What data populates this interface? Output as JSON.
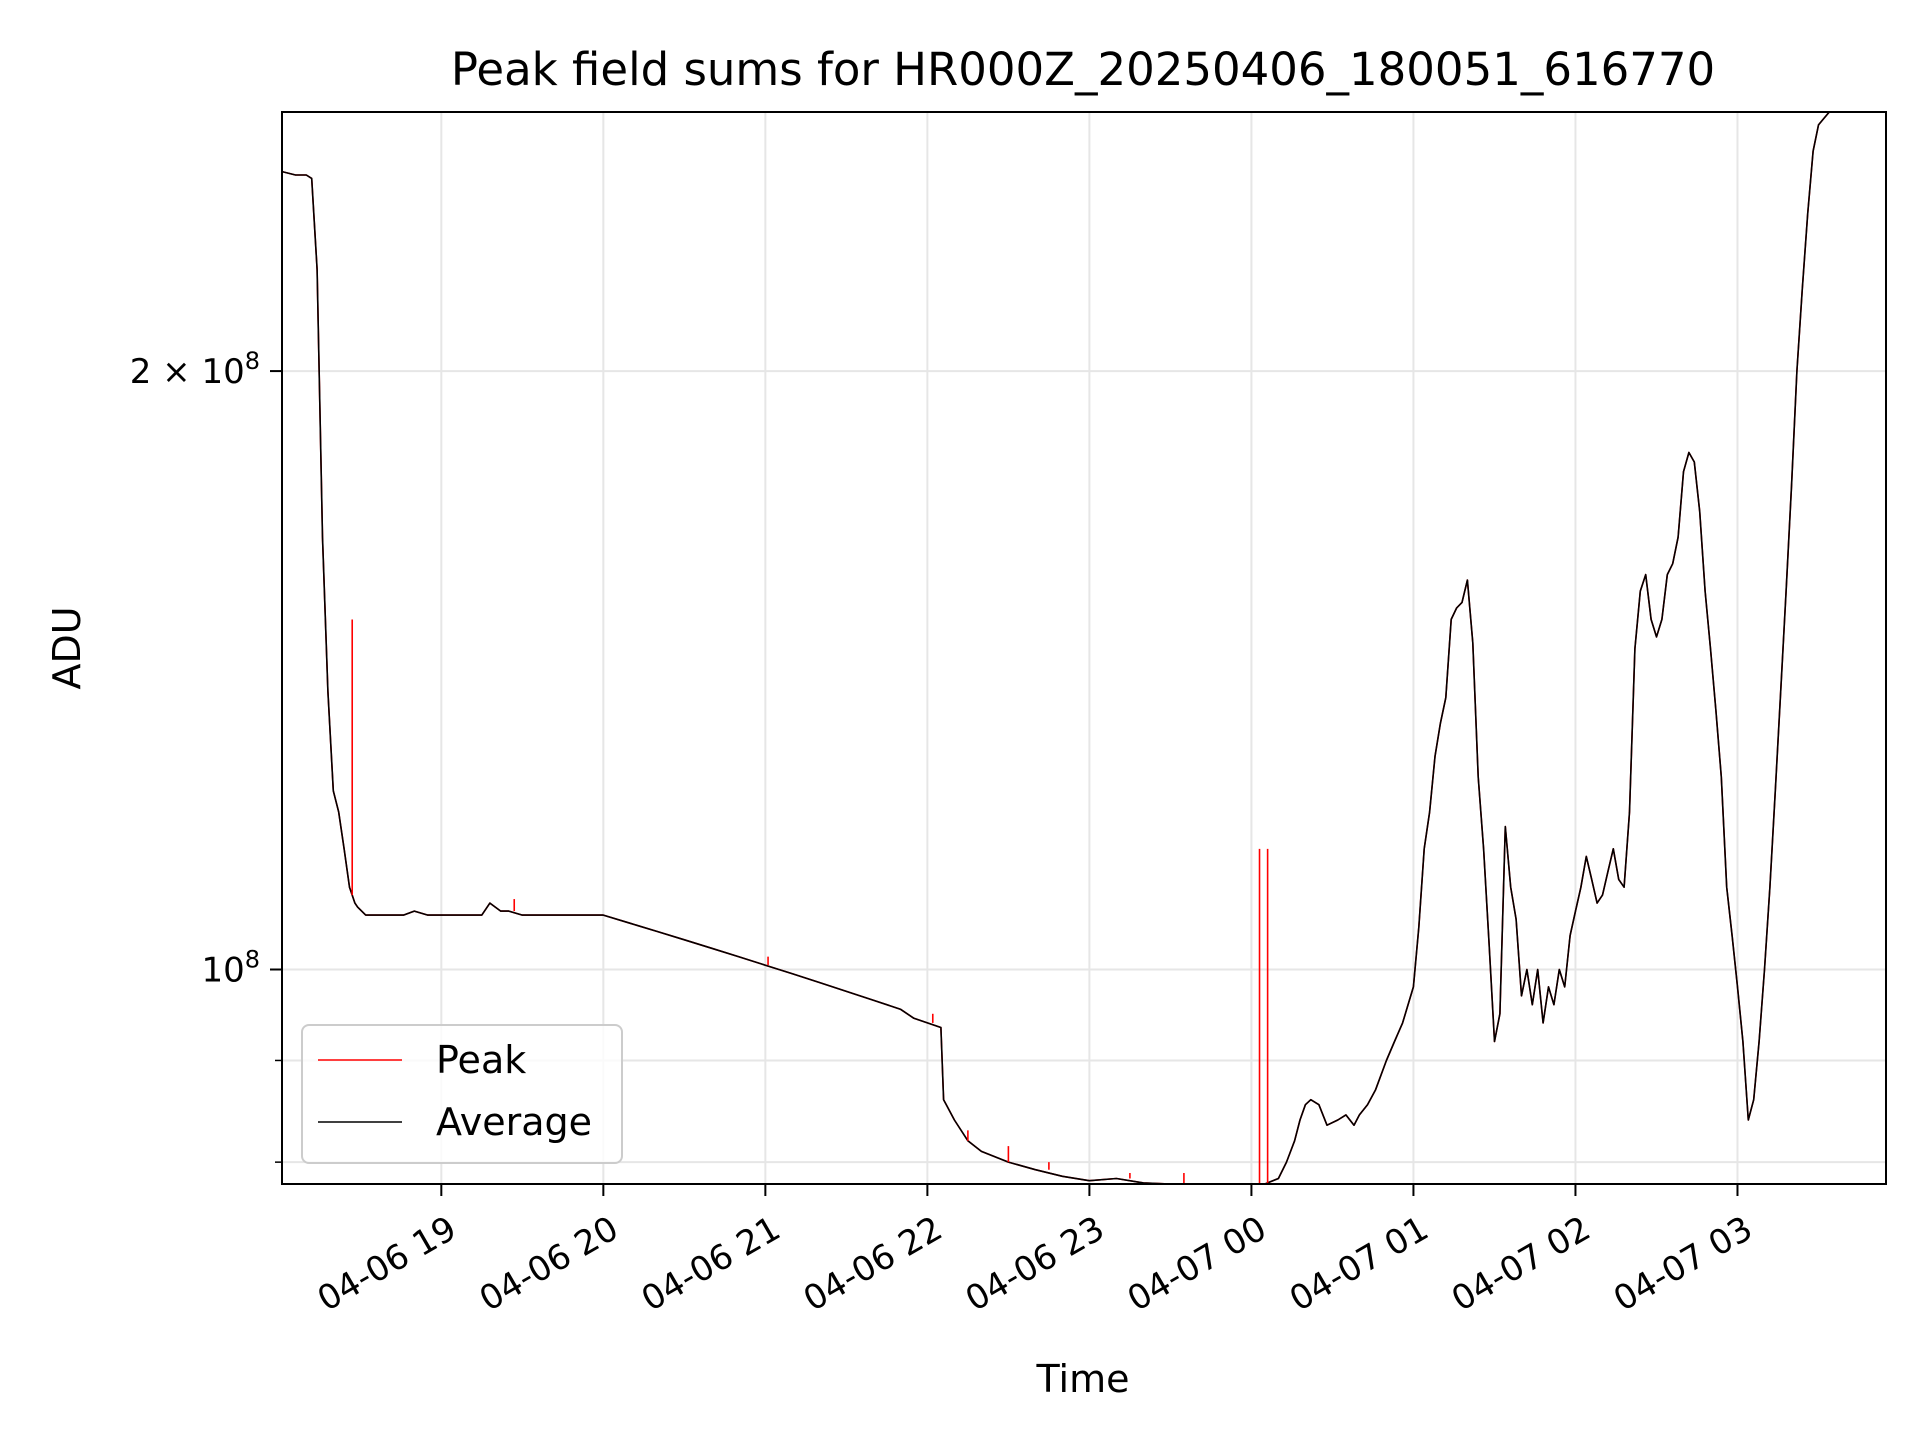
{
  "chart_data": {
    "type": "line",
    "title": "Peak field sums for HR000Z_20250406_180051_616770",
    "xlabel": "Time",
    "ylabel": "ADU",
    "yscale": "log",
    "ylim": [
      78000000,
      270000000
    ],
    "xlim": [
      "2025-04-06 18:01",
      "2025-04-07 03:55"
    ],
    "x_ticks": [
      {
        "value": "2025-04-06 19:00",
        "label": "04-06 19"
      },
      {
        "value": "2025-04-06 20:00",
        "label": "04-06 20"
      },
      {
        "value": "2025-04-06 21:00",
        "label": "04-06 21"
      },
      {
        "value": "2025-04-06 22:00",
        "label": "04-06 22"
      },
      {
        "value": "2025-04-06 23:00",
        "label": "04-06 23"
      },
      {
        "value": "2025-04-07 00:00",
        "label": "04-07 00"
      },
      {
        "value": "2025-04-07 01:00",
        "label": "04-07 01"
      },
      {
        "value": "2025-04-07 02:00",
        "label": "04-07 02"
      },
      {
        "value": "2025-04-07 03:00",
        "label": "04-07 03"
      }
    ],
    "y_ticks": [
      {
        "value": 100000000,
        "base": "10",
        "exp": "8",
        "coef": ""
      },
      {
        "value": 200000000,
        "base": "10",
        "exp": "8",
        "coef": "2 × "
      }
    ],
    "y_minor_ticks": [
      80000000,
      90000000
    ],
    "grid": true,
    "legend": {
      "placement": "lower-left"
    },
    "series": [
      {
        "name": "Average",
        "color": "#000000",
        "x": [
          "2025-04-06 18:01",
          "2025-04-06 18:06",
          "2025-04-06 18:10",
          "2025-04-06 18:12",
          "2025-04-06 18:14",
          "2025-04-06 18:16",
          "2025-04-06 18:18",
          "2025-04-06 18:20",
          "2025-04-06 18:22",
          "2025-04-06 18:24",
          "2025-04-06 18:26",
          "2025-04-06 18:27",
          "2025-04-06 18:28",
          "2025-04-06 18:29",
          "2025-04-06 18:32",
          "2025-04-06 18:35",
          "2025-04-06 18:38",
          "2025-04-06 18:42",
          "2025-04-06 18:46",
          "2025-04-06 18:50",
          "2025-04-06 18:55",
          "2025-04-06 19:00",
          "2025-04-06 19:05",
          "2025-04-06 19:10",
          "2025-04-06 19:15",
          "2025-04-06 19:18",
          "2025-04-06 19:20",
          "2025-04-06 19:22",
          "2025-04-06 19:25",
          "2025-04-06 19:30",
          "2025-04-06 19:40",
          "2025-04-06 19:50",
          "2025-04-06 20:00",
          "2025-04-06 20:10",
          "2025-04-06 20:20",
          "2025-04-06 20:30",
          "2025-04-06 20:40",
          "2025-04-06 20:50",
          "2025-04-06 21:00",
          "2025-04-06 21:10",
          "2025-04-06 21:20",
          "2025-04-06 21:30",
          "2025-04-06 21:40",
          "2025-04-06 21:50",
          "2025-04-06 21:55",
          "2025-04-06 22:00",
          "2025-04-06 22:05",
          "2025-04-06 22:06",
          "2025-04-06 22:07",
          "2025-04-06 22:10",
          "2025-04-06 22:15",
          "2025-04-06 22:20",
          "2025-04-06 22:30",
          "2025-04-06 22:40",
          "2025-04-06 22:50",
          "2025-04-06 23:00",
          "2025-04-06 23:10",
          "2025-04-06 23:20",
          "2025-04-06 23:30",
          "2025-04-06 23:40",
          "2025-04-06 23:50",
          "2025-04-07 00:00",
          "2025-04-07 00:05",
          "2025-04-07 00:10",
          "2025-04-07 00:13",
          "2025-04-07 00:16",
          "2025-04-07 00:18",
          "2025-04-07 00:20",
          "2025-04-07 00:22",
          "2025-04-07 00:25",
          "2025-04-07 00:28",
          "2025-04-07 00:32",
          "2025-04-07 00:35",
          "2025-04-07 00:38",
          "2025-04-07 00:40",
          "2025-04-07 00:43",
          "2025-04-07 00:46",
          "2025-04-07 00:50",
          "2025-04-07 00:53",
          "2025-04-07 00:56",
          "2025-04-07 01:00",
          "2025-04-07 01:02",
          "2025-04-07 01:04",
          "2025-04-07 01:06",
          "2025-04-07 01:08",
          "2025-04-07 01:10",
          "2025-04-07 01:12",
          "2025-04-07 01:14",
          "2025-04-07 01:16",
          "2025-04-07 01:18",
          "2025-04-07 01:20",
          "2025-04-07 01:22",
          "2025-04-07 01:24",
          "2025-04-07 01:26",
          "2025-04-07 01:28",
          "2025-04-07 01:30",
          "2025-04-07 01:32",
          "2025-04-07 01:34",
          "2025-04-07 01:36",
          "2025-04-07 01:38",
          "2025-04-07 01:40",
          "2025-04-07 01:42",
          "2025-04-07 01:44",
          "2025-04-07 01:46",
          "2025-04-07 01:48",
          "2025-04-07 01:50",
          "2025-04-07 01:52",
          "2025-04-07 01:54",
          "2025-04-07 01:56",
          "2025-04-07 01:58",
          "2025-04-07 02:00",
          "2025-04-07 02:02",
          "2025-04-07 02:04",
          "2025-04-07 02:06",
          "2025-04-07 02:08",
          "2025-04-07 02:10",
          "2025-04-07 02:12",
          "2025-04-07 02:14",
          "2025-04-07 02:16",
          "2025-04-07 02:18",
          "2025-04-07 02:20",
          "2025-04-07 02:22",
          "2025-04-07 02:24",
          "2025-04-07 02:26",
          "2025-04-07 02:28",
          "2025-04-07 02:30",
          "2025-04-07 02:32",
          "2025-04-07 02:34",
          "2025-04-07 02:36",
          "2025-04-07 02:38",
          "2025-04-07 02:40",
          "2025-04-07 02:42",
          "2025-04-07 02:44",
          "2025-04-07 02:46",
          "2025-04-07 02:48",
          "2025-04-07 02:50",
          "2025-04-07 02:52",
          "2025-04-07 02:54",
          "2025-04-07 02:56",
          "2025-04-07 02:58",
          "2025-04-07 03:00",
          "2025-04-07 03:02",
          "2025-04-07 03:04",
          "2025-04-07 03:06",
          "2025-04-07 03:08",
          "2025-04-07 03:10",
          "2025-04-07 03:12",
          "2025-04-07 03:14",
          "2025-04-07 03:16",
          "2025-04-07 03:18",
          "2025-04-07 03:20",
          "2025-04-07 03:22",
          "2025-04-07 03:24",
          "2025-04-07 03:26",
          "2025-04-07 03:28",
          "2025-04-07 03:30",
          "2025-04-07 03:32",
          "2025-04-07 03:34",
          "2025-04-07 03:36",
          "2025-04-07 03:38",
          "2025-04-07 03:40",
          "2025-04-07 03:42",
          "2025-04-07 03:44",
          "2025-04-07 03:46",
          "2025-04-07 03:48",
          "2025-04-07 03:50",
          "2025-04-07 03:52",
          "2025-04-07 03:55"
        ],
        "y": [
          252000000,
          251000000,
          251000000,
          250000000,
          225000000,
          165000000,
          138000000,
          123000000,
          120000000,
          115000000,
          110000000,
          109000000,
          108000000,
          107500000,
          106500000,
          106500000,
          106500000,
          106500000,
          106500000,
          107000000,
          106500000,
          106500000,
          106500000,
          106500000,
          106500000,
          108000000,
          107500000,
          107000000,
          107000000,
          106500000,
          106500000,
          106500000,
          106500000,
          105500000,
          104500000,
          103500000,
          102500000,
          101500000,
          100500000,
          99500000,
          98500000,
          97500000,
          96500000,
          95500000,
          94500000,
          94000000,
          93500000,
          86000000,
          85500000,
          84000000,
          82000000,
          81000000,
          80000000,
          79300000,
          78700000,
          78300000,
          78500000,
          78100000,
          78000000,
          77800000,
          77900000,
          77500000,
          78000000,
          78500000,
          80000000,
          82000000,
          84000000,
          85500000,
          86000000,
          85500000,
          83500000,
          84000000,
          84500000,
          83500000,
          84500000,
          85500000,
          87000000,
          90000000,
          92000000,
          94000000,
          98000000,
          105000000,
          115000000,
          120000000,
          128000000,
          133000000,
          137000000,
          150000000,
          152000000,
          153000000,
          157000000,
          146000000,
          125000000,
          115000000,
          103000000,
          92000000,
          95000000,
          118000000,
          110000000,
          106000000,
          97000000,
          100000000,
          96000000,
          100000000,
          94000000,
          98000000,
          96000000,
          100000000,
          98000000,
          104000000,
          107000000,
          110000000,
          114000000,
          111000000,
          108000000,
          109000000,
          112000000,
          115000000,
          111000000,
          110000000,
          120000000,
          145000000,
          155000000,
          158000000,
          150000000,
          147000000,
          150000000,
          158000000,
          160000000,
          165000000,
          178000000,
          182000000,
          180000000,
          170000000,
          155000000,
          145000000,
          135000000,
          125000000,
          110000000,
          104000000,
          98000000,
          92000000,
          84000000,
          86000000,
          92000000,
          100000000,
          110000000,
          123000000,
          138000000,
          155000000,
          175000000,
          200000000,
          220000000,
          240000000,
          258000000,
          266000000,
          268000000,
          270000000,
          270000000,
          270000000,
          270000000,
          270000000,
          270000000,
          270000000,
          270000000,
          270000000,
          270000000,
          270000000
        ]
      },
      {
        "name": "Peak",
        "color": "#ff0000",
        "x": [
          "2025-04-06 18:01",
          "2025-04-06 18:06",
          "2025-04-06 18:10",
          "2025-04-06 18:12",
          "2025-04-06 18:14",
          "2025-04-06 18:16",
          "2025-04-06 18:18",
          "2025-04-06 18:20",
          "2025-04-06 18:22",
          "2025-04-06 18:24",
          "2025-04-06 18:26",
          "2025-04-06 18:27",
          "2025-04-06 18:28",
          "2025-04-06 18:29",
          "2025-04-06 18:32",
          "2025-04-06 18:35",
          "2025-04-06 18:38",
          "2025-04-06 18:42",
          "2025-04-06 18:46",
          "2025-04-06 18:50",
          "2025-04-06 18:55",
          "2025-04-06 19:00",
          "2025-04-06 19:05",
          "2025-04-06 19:10",
          "2025-04-06 19:15",
          "2025-04-06 19:18",
          "2025-04-06 19:20",
          "2025-04-06 19:22",
          "2025-04-06 19:25",
          "2025-04-06 19:30",
          "2025-04-06 19:40",
          "2025-04-06 19:50",
          "2025-04-06 20:00",
          "2025-04-06 20:10",
          "2025-04-06 20:20",
          "2025-04-06 20:30",
          "2025-04-06 20:40",
          "2025-04-06 20:50",
          "2025-04-06 21:00",
          "2025-04-06 21:10",
          "2025-04-06 21:20",
          "2025-04-06 21:30",
          "2025-04-06 21:40",
          "2025-04-06 21:50",
          "2025-04-06 21:55",
          "2025-04-06 22:00",
          "2025-04-06 22:05",
          "2025-04-06 22:06",
          "2025-04-06 22:07",
          "2025-04-06 22:10",
          "2025-04-06 22:15",
          "2025-04-06 22:20",
          "2025-04-06 22:30",
          "2025-04-06 22:40",
          "2025-04-06 22:50",
          "2025-04-06 23:00",
          "2025-04-06 23:10",
          "2025-04-06 23:20",
          "2025-04-06 23:30",
          "2025-04-06 23:40",
          "2025-04-06 23:50",
          "2025-04-07 00:00",
          "2025-04-07 00:05",
          "2025-04-07 00:10",
          "2025-04-07 00:13",
          "2025-04-07 00:16",
          "2025-04-07 00:18",
          "2025-04-07 00:20",
          "2025-04-07 00:22",
          "2025-04-07 00:25",
          "2025-04-07 00:28",
          "2025-04-07 00:32",
          "2025-04-07 00:35",
          "2025-04-07 00:38",
          "2025-04-07 00:40",
          "2025-04-07 00:43",
          "2025-04-07 00:46",
          "2025-04-07 00:50",
          "2025-04-07 00:53",
          "2025-04-07 00:56",
          "2025-04-07 01:00",
          "2025-04-07 01:02",
          "2025-04-07 01:04",
          "2025-04-07 01:06",
          "2025-04-07 01:08",
          "2025-04-07 01:10",
          "2025-04-07 01:12",
          "2025-04-07 01:14",
          "2025-04-07 01:16",
          "2025-04-07 01:18",
          "2025-04-07 01:20",
          "2025-04-07 01:22",
          "2025-04-07 01:24",
          "2025-04-07 01:26",
          "2025-04-07 01:28",
          "2025-04-07 01:30",
          "2025-04-07 01:32",
          "2025-04-07 01:34",
          "2025-04-07 01:36",
          "2025-04-07 01:38",
          "2025-04-07 01:40",
          "2025-04-07 01:42",
          "2025-04-07 01:44",
          "2025-04-07 01:46",
          "2025-04-07 01:48",
          "2025-04-07 01:50",
          "2025-04-07 01:52",
          "2025-04-07 01:54",
          "2025-04-07 01:56",
          "2025-04-07 01:58",
          "2025-04-07 02:00",
          "2025-04-07 02:02",
          "2025-04-07 02:04",
          "2025-04-07 02:06",
          "2025-04-07 02:08",
          "2025-04-07 02:10",
          "2025-04-07 02:12",
          "2025-04-07 02:14",
          "2025-04-07 02:16",
          "2025-04-07 02:18",
          "2025-04-07 02:20",
          "2025-04-07 02:22",
          "2025-04-07 02:24",
          "2025-04-07 02:26",
          "2025-04-07 02:28",
          "2025-04-07 02:30",
          "2025-04-07 02:32",
          "2025-04-07 02:34",
          "2025-04-07 02:36",
          "2025-04-07 02:38",
          "2025-04-07 02:40",
          "2025-04-07 02:42",
          "2025-04-07 02:44",
          "2025-04-07 02:46",
          "2025-04-07 02:48",
          "2025-04-07 02:50",
          "2025-04-07 02:52",
          "2025-04-07 02:54",
          "2025-04-07 02:56",
          "2025-04-07 02:58",
          "2025-04-07 03:00",
          "2025-04-07 03:02",
          "2025-04-07 03:04",
          "2025-04-07 03:06",
          "2025-04-07 03:08",
          "2025-04-07 03:10",
          "2025-04-07 03:12",
          "2025-04-07 03:14",
          "2025-04-07 03:16",
          "2025-04-07 03:18",
          "2025-04-07 03:20",
          "2025-04-07 03:22",
          "2025-04-07 03:24",
          "2025-04-07 03:26",
          "2025-04-07 03:28",
          "2025-04-07 03:30",
          "2025-04-07 03:32",
          "2025-04-07 03:34",
          "2025-04-07 03:36",
          "2025-04-07 03:38",
          "2025-04-07 03:40",
          "2025-04-07 03:42",
          "2025-04-07 03:44",
          "2025-04-07 03:46",
          "2025-04-07 03:48",
          "2025-04-07 03:50",
          "2025-04-07 03:52",
          "2025-04-07 03:55"
        ],
        "y": [
          252000000,
          251000000,
          251000000,
          250000000,
          225000000,
          165000000,
          138000000,
          123000000,
          120000000,
          115000000,
          110000000,
          109000000,
          108000000,
          107500000,
          106500000,
          106500000,
          106500000,
          106500000,
          106500000,
          107000000,
          106500000,
          106500000,
          106500000,
          106500000,
          106500000,
          108000000,
          107500000,
          107000000,
          107000000,
          106500000,
          106500000,
          106500000,
          106500000,
          105500000,
          104500000,
          103500000,
          102500000,
          101500000,
          100500000,
          99500000,
          98500000,
          97500000,
          96500000,
          95500000,
          94500000,
          94000000,
          93500000,
          86000000,
          85500000,
          84000000,
          82000000,
          81000000,
          80000000,
          79300000,
          78700000,
          78300000,
          78500000,
          78100000,
          78000000,
          77800000,
          77900000,
          77500000,
          78000000,
          78500000,
          80000000,
          82000000,
          84000000,
          85500000,
          86000000,
          85500000,
          83500000,
          84000000,
          84500000,
          83500000,
          84500000,
          85500000,
          87000000,
          90000000,
          92000000,
          94000000,
          98000000,
          105000000,
          115000000,
          120000000,
          128000000,
          133000000,
          137000000,
          150000000,
          152000000,
          153000000,
          157000000,
          146000000,
          125000000,
          115000000,
          103000000,
          92000000,
          95000000,
          118000000,
          110000000,
          106000000,
          97000000,
          100000000,
          96000000,
          100000000,
          94000000,
          98000000,
          96000000,
          100000000,
          98000000,
          104000000,
          107000000,
          110000000,
          114000000,
          111000000,
          108000000,
          109000000,
          112000000,
          115000000,
          111000000,
          110000000,
          120000000,
          145000000,
          155000000,
          158000000,
          150000000,
          147000000,
          150000000,
          158000000,
          160000000,
          165000000,
          178000000,
          182000000,
          180000000,
          170000000,
          155000000,
          145000000,
          135000000,
          125000000,
          110000000,
          104000000,
          98000000,
          92000000,
          84000000,
          86000000,
          92000000,
          100000000,
          110000000,
          123000000,
          138000000,
          155000000,
          175000000,
          200000000,
          220000000,
          240000000,
          258000000,
          266000000,
          268000000,
          270000000,
          270000000,
          270000000,
          270000000,
          270000000,
          270000000,
          270000000,
          270000000,
          270000000,
          270000000,
          270000000
        ]
      }
    ],
    "peak_spikes": [
      {
        "x": "2025-04-06 18:27",
        "y": 150000000
      },
      {
        "x": "2025-04-06 19:27",
        "y": 108500000
      },
      {
        "x": "2025-04-06 21:01",
        "y": 101500000
      },
      {
        "x": "2025-04-06 22:02",
        "y": 95000000
      },
      {
        "x": "2025-04-06 22:15",
        "y": 83000000
      },
      {
        "x": "2025-04-06 22:30",
        "y": 81500000
      },
      {
        "x": "2025-04-06 22:45",
        "y": 80000000
      },
      {
        "x": "2025-04-06 23:15",
        "y": 79000000
      },
      {
        "x": "2025-04-06 23:35",
        "y": 79000000
      },
      {
        "x": "2025-04-07 00:03",
        "y": 115000000
      },
      {
        "x": "2025-04-07 00:06",
        "y": 115000000
      }
    ]
  }
}
